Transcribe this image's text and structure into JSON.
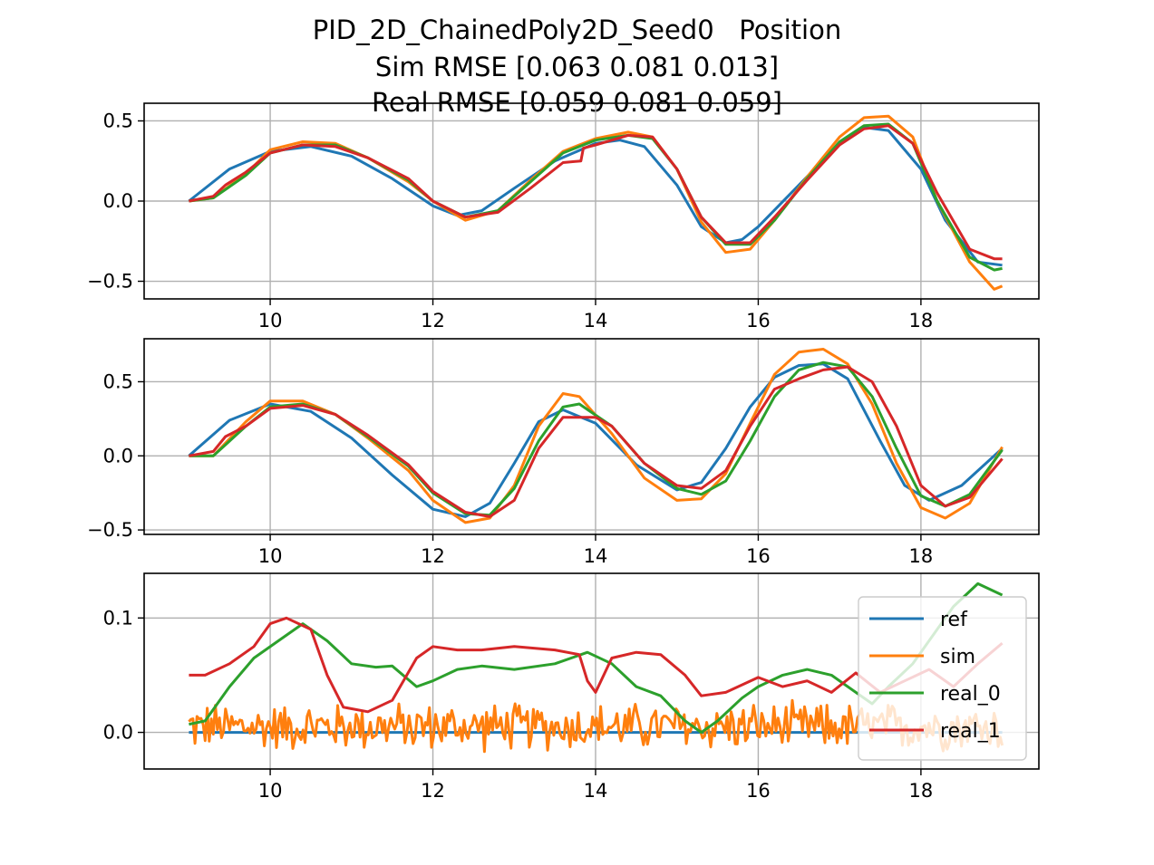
{
  "figure": {
    "title_lines": [
      "PID_2D_ChainedPoly2D_Seed0   Position",
      "Sim RMSE [0.063 0.081 0.013]",
      "Real RMSE [0.059 0.081 0.059]"
    ]
  },
  "colors": {
    "ref": "#1f77b4",
    "sim": "#ff7f0e",
    "real_0": "#2ca02c",
    "real_1": "#d62728",
    "grid": "#b0b0b0",
    "axes": "#000000"
  },
  "legend": {
    "placement": "right",
    "entries": [
      "ref",
      "sim",
      "real_0",
      "real_1"
    ]
  },
  "chart_data": [
    {
      "type": "line",
      "title": "",
      "xlabel": "",
      "ylabel": "",
      "xlim": [
        8.45,
        19.45
      ],
      "ylim": [
        -0.61,
        0.61
      ],
      "grid": true,
      "x_ticks": [
        10,
        12,
        14,
        16,
        18
      ],
      "x_tick_labels": [
        "10",
        "12",
        "14",
        "16",
        "18"
      ],
      "y_ticks": [
        0.5,
        0.0,
        -0.5
      ],
      "y_tick_labels": [
        "0.5",
        "0.0",
        "−0.5"
      ],
      "series": [
        {
          "name": "ref",
          "x": [
            9.0,
            9.5,
            10.0,
            10.5,
            11.0,
            11.5,
            12.0,
            12.3,
            12.6,
            13.0,
            13.5,
            14.0,
            14.3,
            14.6,
            15.0,
            15.3,
            15.6,
            15.8,
            16.0,
            16.5,
            17.0,
            17.3,
            17.6,
            18.0,
            18.3,
            18.7,
            19.0
          ],
          "y": [
            0.0,
            0.2,
            0.31,
            0.34,
            0.28,
            0.14,
            -0.03,
            -0.09,
            -0.06,
            0.08,
            0.25,
            0.36,
            0.38,
            0.34,
            0.1,
            -0.16,
            -0.26,
            -0.24,
            -0.16,
            0.1,
            0.36,
            0.46,
            0.44,
            0.2,
            -0.12,
            -0.38,
            -0.4
          ]
        },
        {
          "name": "sim",
          "x": [
            9.0,
            9.3,
            9.7,
            10.0,
            10.4,
            10.8,
            11.2,
            11.7,
            12.0,
            12.4,
            12.8,
            13.2,
            13.6,
            14.0,
            14.4,
            14.7,
            15.0,
            15.3,
            15.6,
            15.9,
            16.2,
            16.6,
            17.0,
            17.3,
            17.6,
            17.9,
            18.2,
            18.6,
            18.9,
            19.0
          ],
          "y": [
            0.0,
            0.02,
            0.17,
            0.32,
            0.37,
            0.36,
            0.27,
            0.12,
            0.0,
            -0.12,
            -0.06,
            0.13,
            0.31,
            0.39,
            0.43,
            0.4,
            0.2,
            -0.13,
            -0.32,
            -0.3,
            -0.12,
            0.15,
            0.4,
            0.52,
            0.53,
            0.4,
            0.0,
            -0.38,
            -0.55,
            -0.53
          ]
        },
        {
          "name": "real_0",
          "x": [
            9.0,
            9.3,
            9.7,
            10.0,
            10.4,
            10.8,
            11.2,
            11.7,
            12.0,
            12.4,
            12.8,
            13.2,
            13.6,
            14.0,
            14.4,
            14.7,
            15.0,
            15.3,
            15.6,
            15.9,
            16.2,
            16.6,
            17.0,
            17.3,
            17.6,
            17.9,
            18.2,
            18.6,
            18.9,
            19.0
          ],
          "y": [
            0.0,
            0.02,
            0.16,
            0.3,
            0.35,
            0.35,
            0.27,
            0.13,
            0.0,
            -0.1,
            -0.06,
            0.12,
            0.3,
            0.38,
            0.41,
            0.39,
            0.2,
            -0.1,
            -0.27,
            -0.27,
            -0.12,
            0.14,
            0.37,
            0.47,
            0.48,
            0.36,
            0.0,
            -0.35,
            -0.43,
            -0.42
          ]
        },
        {
          "name": "real_1",
          "x": [
            9.0,
            9.3,
            9.45,
            9.7,
            10.0,
            10.4,
            10.8,
            11.2,
            11.7,
            12.0,
            12.4,
            12.8,
            13.2,
            13.6,
            13.82,
            13.85,
            14.0,
            14.4,
            14.7,
            15.0,
            15.3,
            15.6,
            15.9,
            16.2,
            16.6,
            17.0,
            17.3,
            17.6,
            17.9,
            18.2,
            18.6,
            18.9,
            19.0
          ],
          "y": [
            0.0,
            0.03,
            0.1,
            0.18,
            0.3,
            0.35,
            0.34,
            0.27,
            0.14,
            0.0,
            -0.1,
            -0.07,
            0.08,
            0.24,
            0.25,
            0.33,
            0.35,
            0.41,
            0.4,
            0.2,
            -0.1,
            -0.26,
            -0.26,
            -0.1,
            0.13,
            0.35,
            0.45,
            0.47,
            0.36,
            0.05,
            -0.3,
            -0.36,
            -0.36
          ]
        }
      ]
    },
    {
      "type": "line",
      "title": "",
      "xlabel": "",
      "ylabel": "",
      "xlim": [
        8.45,
        19.45
      ],
      "ylim": [
        -0.53,
        0.79
      ],
      "grid": true,
      "x_ticks": [
        10,
        12,
        14,
        16,
        18
      ],
      "x_tick_labels": [
        "10",
        "12",
        "14",
        "16",
        "18"
      ],
      "y_ticks": [
        0.5,
        0.0,
        -0.5
      ],
      "y_tick_labels": [
        "0.5",
        "0.0",
        "−0.5"
      ],
      "series": [
        {
          "name": "ref",
          "x": [
            9.0,
            9.5,
            10.0,
            10.5,
            11.0,
            11.5,
            12.0,
            12.4,
            12.7,
            13.0,
            13.3,
            13.6,
            14.0,
            14.5,
            15.0,
            15.3,
            15.6,
            15.9,
            16.2,
            16.5,
            16.8,
            17.1,
            17.5,
            17.8,
            18.1,
            18.5,
            19.0
          ],
          "y": [
            0.0,
            0.24,
            0.35,
            0.3,
            0.12,
            -0.13,
            -0.36,
            -0.41,
            -0.32,
            -0.05,
            0.23,
            0.31,
            0.22,
            -0.06,
            -0.23,
            -0.18,
            0.05,
            0.33,
            0.53,
            0.61,
            0.62,
            0.52,
            0.1,
            -0.2,
            -0.3,
            -0.2,
            0.05
          ]
        },
        {
          "name": "sim",
          "x": [
            9.0,
            9.3,
            9.7,
            10.0,
            10.4,
            10.8,
            11.2,
            11.7,
            12.0,
            12.4,
            12.7,
            13.0,
            13.3,
            13.6,
            13.8,
            14.2,
            14.6,
            15.0,
            15.3,
            15.6,
            15.9,
            16.2,
            16.5,
            16.8,
            17.1,
            17.4,
            17.7,
            18.0,
            18.3,
            18.6,
            19.0
          ],
          "y": [
            0.0,
            0.0,
            0.23,
            0.37,
            0.37,
            0.28,
            0.12,
            -0.1,
            -0.3,
            -0.45,
            -0.42,
            -0.2,
            0.2,
            0.42,
            0.4,
            0.15,
            -0.15,
            -0.3,
            -0.29,
            -0.12,
            0.22,
            0.55,
            0.7,
            0.72,
            0.62,
            0.35,
            -0.05,
            -0.35,
            -0.42,
            -0.32,
            0.06
          ]
        },
        {
          "name": "real_0",
          "x": [
            9.0,
            9.3,
            9.7,
            10.0,
            10.4,
            10.8,
            11.2,
            11.7,
            12.0,
            12.4,
            12.7,
            13.0,
            13.3,
            13.6,
            13.8,
            14.2,
            14.6,
            15.0,
            15.3,
            15.6,
            15.9,
            16.2,
            16.5,
            16.8,
            17.1,
            17.4,
            17.7,
            18.0,
            18.3,
            18.6,
            19.0
          ],
          "y": [
            0.0,
            0.0,
            0.2,
            0.33,
            0.35,
            0.28,
            0.13,
            -0.07,
            -0.25,
            -0.39,
            -0.4,
            -0.22,
            0.1,
            0.33,
            0.35,
            0.2,
            -0.05,
            -0.22,
            -0.26,
            -0.17,
            0.1,
            0.4,
            0.58,
            0.63,
            0.6,
            0.4,
            0.05,
            -0.27,
            -0.34,
            -0.26,
            0.04
          ]
        },
        {
          "name": "real_1",
          "x": [
            9.0,
            9.3,
            9.45,
            9.7,
            10.0,
            10.4,
            10.8,
            11.2,
            11.7,
            12.0,
            12.4,
            12.7,
            13.0,
            13.3,
            13.6,
            14.0,
            14.2,
            14.6,
            15.0,
            15.3,
            15.6,
            15.9,
            16.2,
            16.5,
            16.8,
            17.1,
            17.4,
            17.7,
            18.0,
            18.3,
            18.6,
            19.0
          ],
          "y": [
            0.0,
            0.03,
            0.13,
            0.2,
            0.32,
            0.34,
            0.28,
            0.14,
            -0.06,
            -0.24,
            -0.38,
            -0.41,
            -0.3,
            0.05,
            0.26,
            0.26,
            0.2,
            -0.05,
            -0.2,
            -0.22,
            -0.1,
            0.2,
            0.45,
            0.52,
            0.58,
            0.6,
            0.5,
            0.2,
            -0.2,
            -0.34,
            -0.28,
            -0.02
          ]
        }
      ]
    },
    {
      "type": "line",
      "title": "",
      "xlabel": "",
      "ylabel": "",
      "xlim": [
        8.45,
        19.45
      ],
      "ylim": [
        -0.032,
        0.139
      ],
      "grid": true,
      "x_ticks": [
        10,
        12,
        14,
        16,
        18
      ],
      "x_tick_labels": [
        "10",
        "12",
        "14",
        "16",
        "18"
      ],
      "y_ticks": [
        0.1,
        0.0
      ],
      "y_tick_labels": [
        "0.1",
        "0.0"
      ],
      "noise_series": {
        "sim": {
          "x_start": 9.0,
          "x_end": 19.0,
          "count": 400,
          "mean": 0.005,
          "amplitude": 0.024
        }
      },
      "series": [
        {
          "name": "ref",
          "x": [
            9.0,
            19.0
          ],
          "y": [
            0.0,
            0.0
          ]
        },
        {
          "name": "real_0",
          "x": [
            9.0,
            9.2,
            9.5,
            9.8,
            10.1,
            10.4,
            10.7,
            11.0,
            11.3,
            11.5,
            11.8,
            12.0,
            12.3,
            12.6,
            13.0,
            13.5,
            13.9,
            14.2,
            14.5,
            14.8,
            15.1,
            15.3,
            15.5,
            15.8,
            16.0,
            16.3,
            16.6,
            16.9,
            17.2,
            17.4,
            17.6,
            17.9,
            18.2,
            18.4,
            18.7,
            19.0
          ],
          "y": [
            0.007,
            0.01,
            0.04,
            0.065,
            0.08,
            0.095,
            0.08,
            0.06,
            0.057,
            0.058,
            0.04,
            0.045,
            0.055,
            0.058,
            0.055,
            0.06,
            0.07,
            0.06,
            0.04,
            0.032,
            0.01,
            0.0,
            0.01,
            0.03,
            0.04,
            0.05,
            0.055,
            0.05,
            0.035,
            0.025,
            0.04,
            0.06,
            0.09,
            0.11,
            0.13,
            0.12
          ]
        },
        {
          "name": "real_1",
          "x": [
            9.0,
            9.2,
            9.5,
            9.8,
            10.0,
            10.2,
            10.5,
            10.7,
            10.9,
            11.2,
            11.5,
            11.8,
            12.0,
            12.3,
            12.6,
            13.0,
            13.5,
            13.8,
            13.9,
            14.0,
            14.2,
            14.5,
            14.8,
            15.1,
            15.3,
            15.6,
            16.0,
            16.3,
            16.6,
            16.9,
            17.2,
            17.5,
            17.8,
            18.1,
            18.4,
            18.7,
            19.0
          ],
          "y": [
            0.05,
            0.05,
            0.06,
            0.075,
            0.095,
            0.1,
            0.09,
            0.05,
            0.022,
            0.018,
            0.028,
            0.065,
            0.075,
            0.072,
            0.072,
            0.075,
            0.072,
            0.068,
            0.045,
            0.035,
            0.065,
            0.07,
            0.068,
            0.05,
            0.032,
            0.035,
            0.048,
            0.04,
            0.045,
            0.035,
            0.052,
            0.035,
            0.045,
            0.055,
            0.04,
            0.06,
            0.078
          ]
        }
      ]
    }
  ]
}
